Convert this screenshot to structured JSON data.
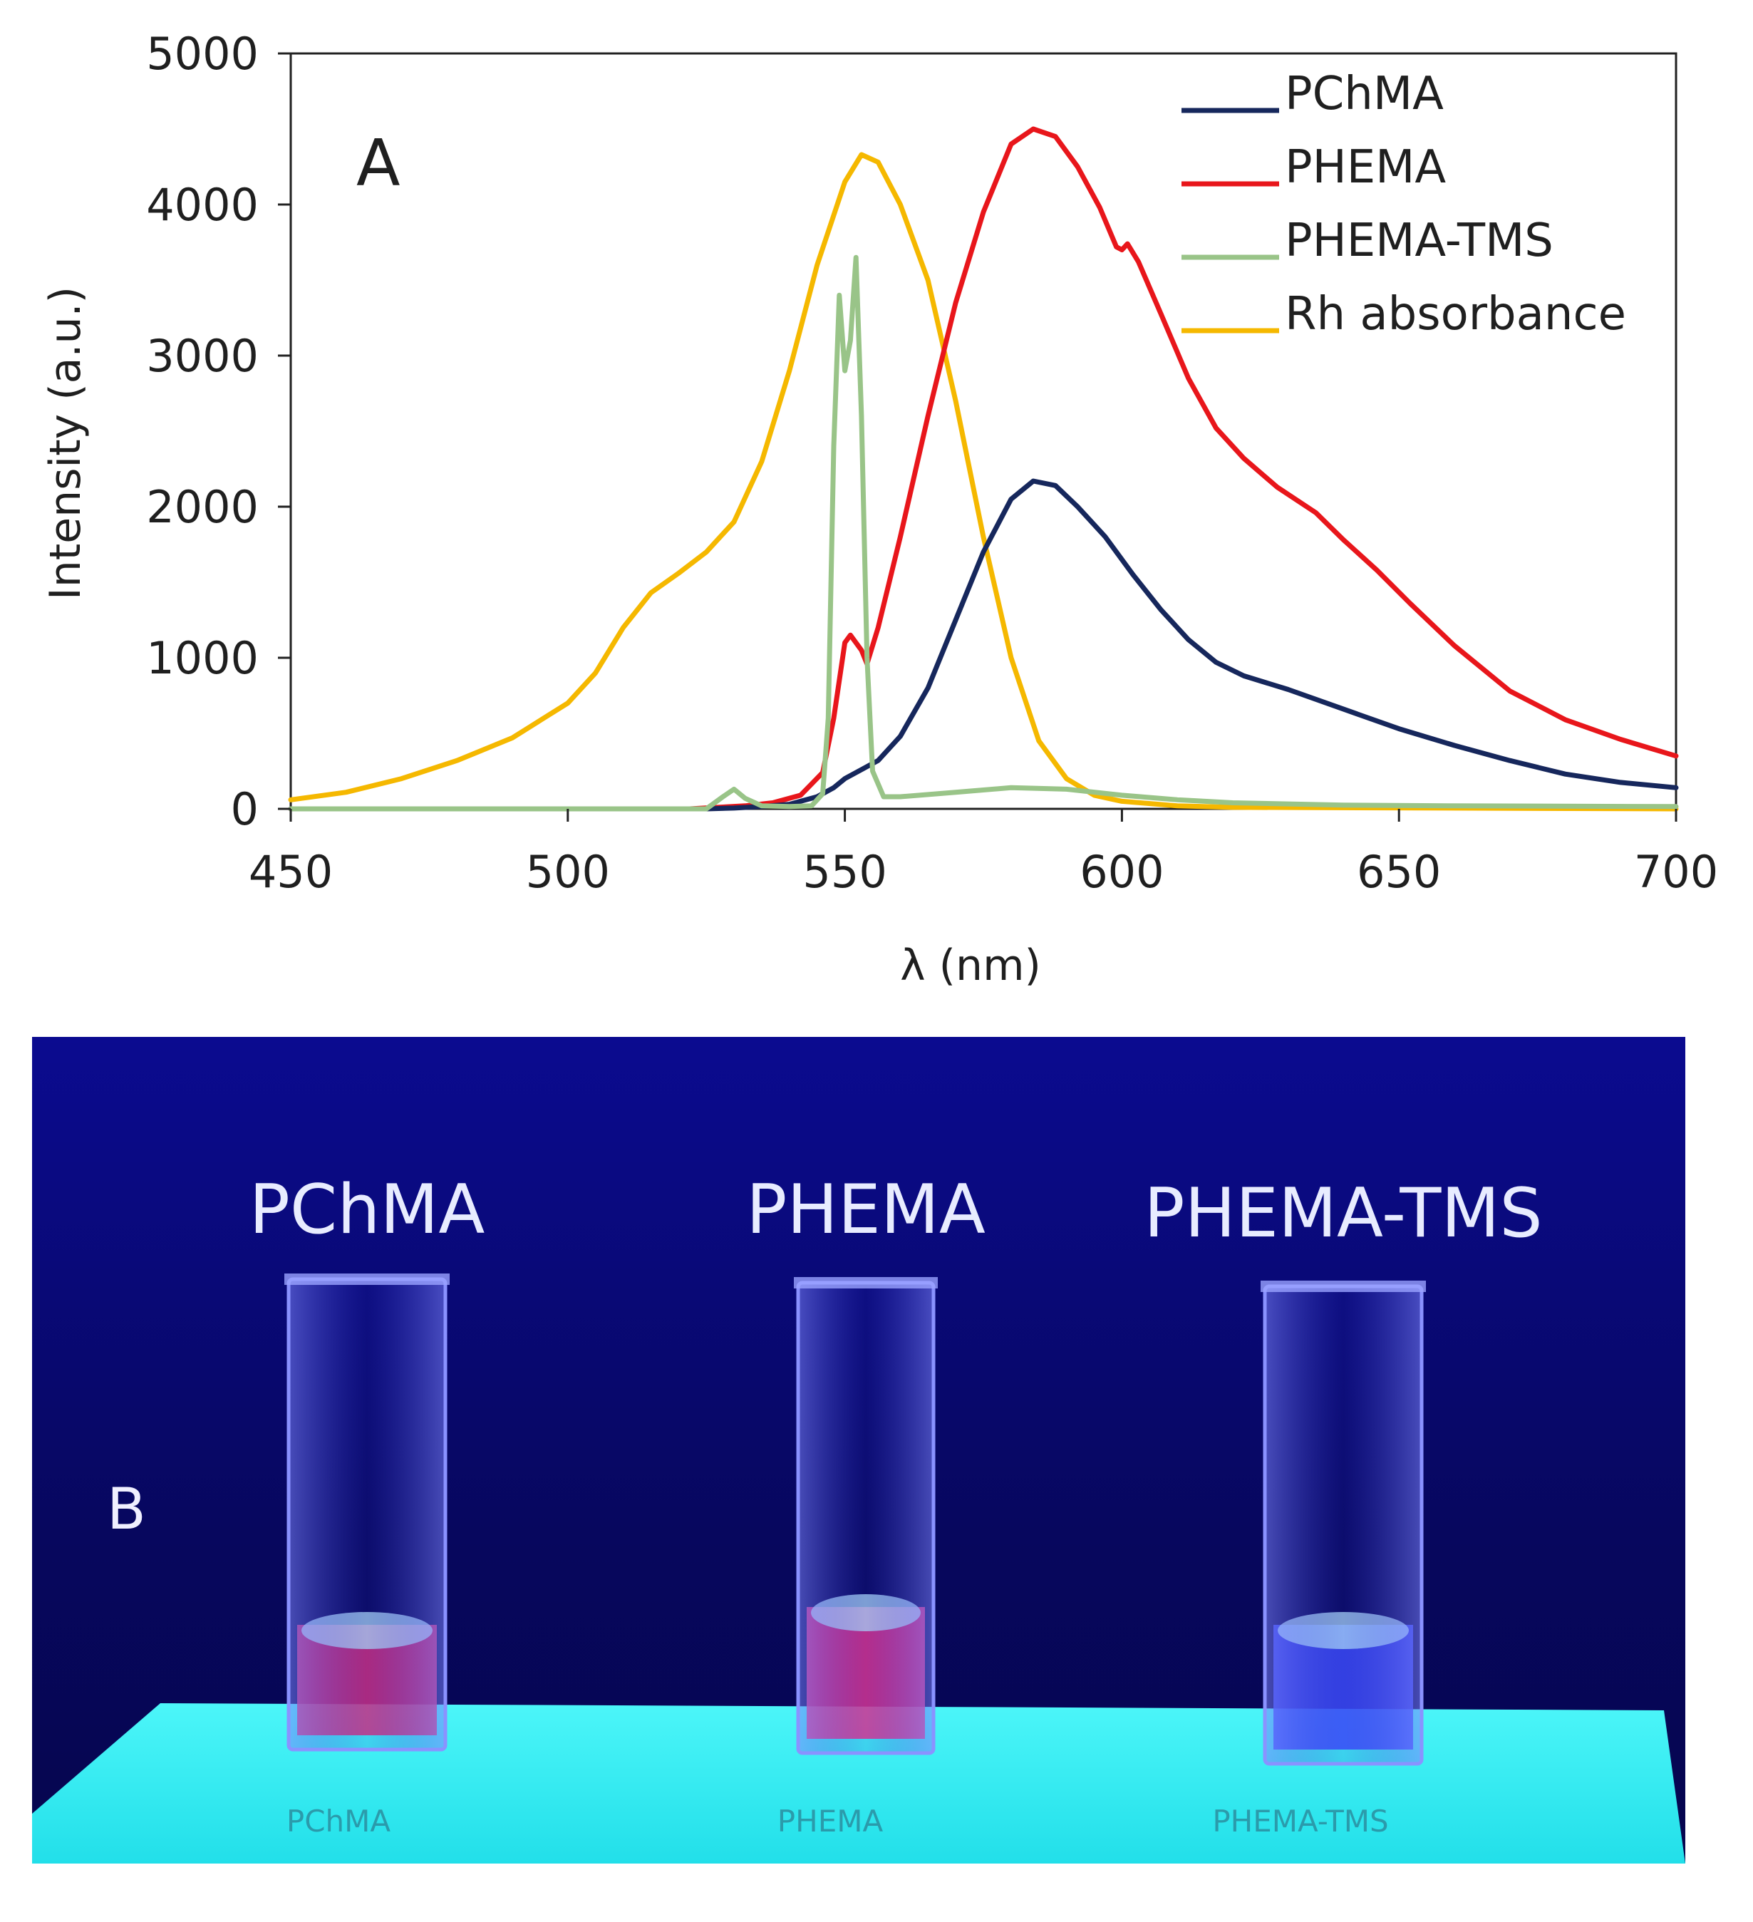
{
  "chart_data": {
    "type": "line",
    "panel_label": "A",
    "xlabel": "λ (nm)",
    "ylabel": "Intensity (a.u.)",
    "xlim": [
      450,
      700
    ],
    "ylim": [
      0,
      5000
    ],
    "x_ticks": [
      450,
      500,
      550,
      600,
      650,
      700
    ],
    "y_ticks": [
      0,
      1000,
      2000,
      3000,
      4000,
      5000
    ],
    "legend_position": "top-right",
    "series": [
      {
        "name": "PChMA",
        "color": "#16275c",
        "points": [
          [
            450,
            0
          ],
          [
            525,
            0
          ],
          [
            530,
            5
          ],
          [
            535,
            15
          ],
          [
            540,
            30
          ],
          [
            545,
            80
          ],
          [
            548,
            140
          ],
          [
            550,
            200
          ],
          [
            553,
            260
          ],
          [
            556,
            320
          ],
          [
            560,
            480
          ],
          [
            565,
            800
          ],
          [
            570,
            1250
          ],
          [
            575,
            1700
          ],
          [
            580,
            2050
          ],
          [
            584,
            2170
          ],
          [
            588,
            2140
          ],
          [
            592,
            2000
          ],
          [
            597,
            1800
          ],
          [
            602,
            1550
          ],
          [
            607,
            1320
          ],
          [
            612,
            1120
          ],
          [
            617,
            970
          ],
          [
            622,
            880
          ],
          [
            630,
            790
          ],
          [
            640,
            660
          ],
          [
            650,
            530
          ],
          [
            660,
            420
          ],
          [
            670,
            320
          ],
          [
            680,
            230
          ],
          [
            690,
            175
          ],
          [
            700,
            140
          ]
        ]
      },
      {
        "name": "PHEMA",
        "color": "#e8161b",
        "points": [
          [
            450,
            0
          ],
          [
            522,
            0
          ],
          [
            527,
            10
          ],
          [
            532,
            20
          ],
          [
            537,
            40
          ],
          [
            542,
            90
          ],
          [
            546,
            240
          ],
          [
            548,
            600
          ],
          [
            550,
            1100
          ],
          [
            551,
            1150
          ],
          [
            553,
            1050
          ],
          [
            554,
            960
          ],
          [
            556,
            1200
          ],
          [
            560,
            1800
          ],
          [
            565,
            2600
          ],
          [
            570,
            3350
          ],
          [
            575,
            3950
          ],
          [
            580,
            4400
          ],
          [
            584,
            4500
          ],
          [
            588,
            4450
          ],
          [
            592,
            4250
          ],
          [
            596,
            3980
          ],
          [
            599,
            3720
          ],
          [
            600,
            3700
          ],
          [
            601,
            3740
          ],
          [
            603,
            3620
          ],
          [
            607,
            3280
          ],
          [
            612,
            2850
          ],
          [
            617,
            2520
          ],
          [
            622,
            2320
          ],
          [
            628,
            2130
          ],
          [
            635,
            1960
          ],
          [
            640,
            1780
          ],
          [
            646,
            1580
          ],
          [
            652,
            1360
          ],
          [
            660,
            1080
          ],
          [
            670,
            780
          ],
          [
            680,
            590
          ],
          [
            690,
            460
          ],
          [
            700,
            350
          ]
        ]
      },
      {
        "name": "PHEMA-TMS",
        "color": "#99c488",
        "points": [
          [
            450,
            0
          ],
          [
            525,
            0
          ],
          [
            528,
            80
          ],
          [
            530,
            130
          ],
          [
            532,
            70
          ],
          [
            535,
            20
          ],
          [
            540,
            15
          ],
          [
            544,
            20
          ],
          [
            546,
            100
          ],
          [
            547,
            600
          ],
          [
            548,
            2400
          ],
          [
            549,
            3400
          ],
          [
            550,
            2900
          ],
          [
            551,
            3100
          ],
          [
            552,
            3650
          ],
          [
            553,
            2600
          ],
          [
            554,
            1000
          ],
          [
            555,
            250
          ],
          [
            557,
            80
          ],
          [
            560,
            80
          ],
          [
            570,
            110
          ],
          [
            580,
            140
          ],
          [
            590,
            130
          ],
          [
            600,
            90
          ],
          [
            610,
            60
          ],
          [
            620,
            40
          ],
          [
            640,
            25
          ],
          [
            660,
            20
          ],
          [
            700,
            15
          ]
        ]
      },
      {
        "name": "Rh absorbance",
        "color": "#f5b800",
        "points": [
          [
            450,
            60
          ],
          [
            460,
            110
          ],
          [
            470,
            200
          ],
          [
            480,
            320
          ],
          [
            490,
            470
          ],
          [
            500,
            700
          ],
          [
            505,
            900
          ],
          [
            510,
            1200
          ],
          [
            515,
            1430
          ],
          [
            520,
            1560
          ],
          [
            525,
            1700
          ],
          [
            530,
            1900
          ],
          [
            535,
            2300
          ],
          [
            540,
            2900
          ],
          [
            545,
            3600
          ],
          [
            550,
            4150
          ],
          [
            553,
            4330
          ],
          [
            556,
            4280
          ],
          [
            560,
            4000
          ],
          [
            565,
            3500
          ],
          [
            570,
            2700
          ],
          [
            575,
            1800
          ],
          [
            580,
            1000
          ],
          [
            585,
            450
          ],
          [
            590,
            200
          ],
          [
            595,
            90
          ],
          [
            600,
            50
          ],
          [
            610,
            20
          ],
          [
            620,
            10
          ],
          [
            700,
            0
          ]
        ]
      }
    ]
  },
  "photo": {
    "panel_label": "B",
    "cuvettes": [
      {
        "label": "PChMA",
        "liquid_color": "#e0307a",
        "paper_text": "PChMA"
      },
      {
        "label": "PHEMA",
        "liquid_color": "#f0358a",
        "paper_text": "PHEMA"
      },
      {
        "label": "PHEMA-TMS",
        "liquid_color": "#3d4dff",
        "paper_text": "PHEMA-TMS"
      }
    ],
    "background_color": "#0a0a8a",
    "paper_color": "#36f0f5"
  }
}
